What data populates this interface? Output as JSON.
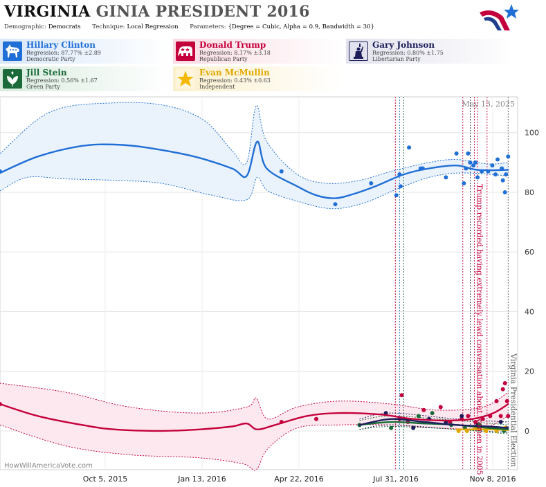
{
  "header": {
    "state": "VIRGINIA",
    "race": "GINIA PRESIDENT 2016",
    "demographic_label": "Demographic:",
    "demographic_value": "Democrats",
    "technique_label": "Technique:",
    "technique_value": "Local Regression",
    "parameters_label": "Parameters:",
    "parameters_value": "{Degree = Cubic, Alpha = 0.9, Bandwidth = 30}"
  },
  "candidates": [
    {
      "name": "Hillary Clinton",
      "regression": "Regression: 87.77% ±2.89",
      "party": "Democratic Party",
      "color": "#1f6fd6",
      "bg": "#e4eefb",
      "icon": "donkey-icon"
    },
    {
      "name": "Donald Trump",
      "regression": "Regression: 8.17% ±3.18",
      "party": "Republican Party",
      "color": "#c4003c",
      "bg": "#fbe4ea",
      "icon": "elephant-icon"
    },
    {
      "name": "Gary Johnson",
      "regression": "Regression: 0.80% ±1.75",
      "party": "Libertarian Party",
      "color": "#1d1d5a",
      "bg": "#eaeaf2",
      "icon": "liberty-icon"
    },
    {
      "name": "Jill Stein",
      "regression": "Regression: 0.56% ±1.67",
      "party": "Green Party",
      "color": "#1b6b3a",
      "bg": "#e4f1e8",
      "icon": "leaf-icon"
    },
    {
      "name": "Evan McMullin",
      "regression": "Regression: 0.43% ±0.63",
      "party": "Independent",
      "color": "#e0a800",
      "bg": "#fdf5dc",
      "icon": "star-icon"
    }
  ],
  "credit": "HowWillAmericaVote.com",
  "chart_data": {
    "type": "line",
    "x_tick_labels": [
      "Oct 5, 2015",
      "Jan 13, 2016",
      "Apr 22, 2016",
      "Jul 31, 2016",
      "Nov 8, 2016"
    ],
    "x_range": [
      "2015-07-15",
      "2016-11-17"
    ],
    "y_range": [
      -13,
      112
    ],
    "y_ticks": [
      0,
      20,
      40,
      60,
      80,
      100
    ],
    "grid": true,
    "date_label": "May 13, 2025",
    "annotations": [
      {
        "date": "2016-10-07",
        "text": "Trump recorded having extremely lewd conversation about women in 2005",
        "color": "#c4003c"
      },
      {
        "date": "2016-11-08",
        "text": "Virginia Presidential Election",
        "color": "#555555"
      }
    ],
    "event_lines": [
      {
        "date": "2016-07-24",
        "color": "#c4003c"
      },
      {
        "date": "2016-07-28",
        "color": "#1f6fd6"
      },
      {
        "date": "2016-08-01",
        "color": "#1b6b3a"
      },
      {
        "date": "2016-09-26",
        "color": "#c4003c"
      },
      {
        "date": "2016-10-03",
        "color": "#1d1d5a"
      },
      {
        "date": "2016-10-07",
        "color": "#c4003c"
      },
      {
        "date": "2016-10-10",
        "color": "#c4003c"
      },
      {
        "date": "2016-10-19",
        "color": "#c4003c"
      },
      {
        "date": "2016-11-08",
        "color": "#555555"
      }
    ],
    "series": [
      {
        "name": "Hillary Clinton",
        "color": "#1f6fd6",
        "fill": "#eaf2fb",
        "line": [
          [
            "2015-07-15",
            86.5
          ],
          [
            "2015-08-20",
            92
          ],
          [
            "2015-09-30",
            95.5
          ],
          [
            "2015-11-01",
            96
          ],
          [
            "2015-12-01",
            95
          ],
          [
            "2016-01-15",
            92
          ],
          [
            "2016-02-20",
            88
          ],
          [
            "2016-03-05",
            85.5
          ],
          [
            "2016-03-15",
            97
          ],
          [
            "2016-03-24",
            88
          ],
          [
            "2016-04-22",
            82
          ],
          [
            "2016-05-10",
            79
          ],
          [
            "2016-05-28",
            78
          ],
          [
            "2016-06-15",
            79.5
          ],
          [
            "2016-07-05",
            82
          ],
          [
            "2016-08-01",
            86
          ],
          [
            "2016-08-25",
            88
          ],
          [
            "2016-09-20",
            89
          ],
          [
            "2016-10-10",
            87.5
          ],
          [
            "2016-11-08",
            87.5
          ]
        ],
        "upper": [
          [
            "2015-07-15",
            93
          ],
          [
            "2015-09-01",
            107
          ],
          [
            "2015-11-01",
            110
          ],
          [
            "2015-12-20",
            109
          ],
          [
            "2016-01-25",
            104
          ],
          [
            "2016-02-20",
            94
          ],
          [
            "2016-03-05",
            90
          ],
          [
            "2016-03-14",
            109
          ],
          [
            "2016-03-24",
            97
          ],
          [
            "2016-04-22",
            86
          ],
          [
            "2016-05-20",
            83
          ],
          [
            "2016-06-20",
            84
          ],
          [
            "2016-07-20",
            87
          ],
          [
            "2016-08-25",
            90
          ],
          [
            "2016-09-20",
            91
          ],
          [
            "2016-10-20",
            89.5
          ],
          [
            "2016-11-08",
            90
          ]
        ],
        "lower": [
          [
            "2015-07-15",
            80.5
          ],
          [
            "2015-08-10",
            85
          ],
          [
            "2015-09-15",
            84.5
          ],
          [
            "2015-11-01",
            84
          ],
          [
            "2015-12-15",
            83
          ],
          [
            "2016-02-01",
            79
          ],
          [
            "2016-03-05",
            77.5
          ],
          [
            "2016-03-15",
            85
          ],
          [
            "2016-03-25",
            80.5
          ],
          [
            "2016-04-22",
            77
          ],
          [
            "2016-05-25",
            74.5
          ],
          [
            "2016-06-25",
            76.5
          ],
          [
            "2016-07-25",
            81
          ],
          [
            "2016-08-25",
            85
          ],
          [
            "2016-09-25",
            86.5
          ],
          [
            "2016-11-08",
            85.5
          ]
        ],
        "points": [
          [
            "2015-07-15",
            87
          ],
          [
            "2016-04-07",
            87
          ],
          [
            "2016-05-28",
            76
          ],
          [
            "2016-07-01",
            83
          ],
          [
            "2016-07-25",
            79
          ],
          [
            "2016-07-28",
            86
          ],
          [
            "2016-07-29",
            82
          ],
          [
            "2016-08-06",
            95
          ],
          [
            "2016-08-17",
            88
          ],
          [
            "2016-08-19",
            88
          ],
          [
            "2016-09-10",
            85
          ],
          [
            "2016-09-20",
            93
          ],
          [
            "2016-09-27",
            83
          ],
          [
            "2016-09-29",
            88
          ],
          [
            "2016-10-01",
            93
          ],
          [
            "2016-10-03",
            90
          ],
          [
            "2016-10-06",
            89
          ],
          [
            "2016-10-08",
            90
          ],
          [
            "2016-10-10",
            85
          ],
          [
            "2016-10-14",
            87
          ],
          [
            "2016-10-20",
            87
          ],
          [
            "2016-10-24",
            89
          ],
          [
            "2016-10-27",
            86
          ],
          [
            "2016-10-29",
            91
          ],
          [
            "2016-11-02",
            88
          ],
          [
            "2016-11-03",
            84
          ],
          [
            "2016-11-05",
            80
          ],
          [
            "2016-11-06",
            86
          ],
          [
            "2016-11-08",
            92
          ]
        ]
      },
      {
        "name": "Donald Trump",
        "color": "#c4003c",
        "fill": "#fce8ee",
        "line": [
          [
            "2015-07-15",
            9
          ],
          [
            "2015-08-20",
            5
          ],
          [
            "2015-10-01",
            2
          ],
          [
            "2015-11-01",
            0.5
          ],
          [
            "2015-12-15",
            0
          ],
          [
            "2016-01-20",
            0.5
          ],
          [
            "2016-02-20",
            1.5
          ],
          [
            "2016-03-05",
            2.5
          ],
          [
            "2016-03-15",
            0.5
          ],
          [
            "2016-04-01",
            2
          ],
          [
            "2016-05-01",
            5
          ],
          [
            "2016-06-01",
            6
          ],
          [
            "2016-07-10",
            5.5
          ],
          [
            "2016-08-10",
            4
          ],
          [
            "2016-09-10",
            3.5
          ],
          [
            "2016-10-05",
            4
          ],
          [
            "2016-10-25",
            6
          ],
          [
            "2016-11-08",
            9
          ]
        ],
        "upper": [
          [
            "2015-07-15",
            16
          ],
          [
            "2015-09-15",
            13
          ],
          [
            "2015-11-15",
            8
          ],
          [
            "2016-01-20",
            6
          ],
          [
            "2016-03-05",
            8
          ],
          [
            "2016-03-14",
            11
          ],
          [
            "2016-03-25",
            4
          ],
          [
            "2016-04-22",
            8
          ],
          [
            "2016-06-01",
            10
          ],
          [
            "2016-07-20",
            9
          ],
          [
            "2016-09-01",
            7
          ],
          [
            "2016-10-15",
            8
          ],
          [
            "2016-11-08",
            13
          ]
        ],
        "lower": [
          [
            "2015-07-15",
            2
          ],
          [
            "2015-09-15",
            -5
          ],
          [
            "2015-11-15",
            -8
          ],
          [
            "2016-01-20",
            -9
          ],
          [
            "2016-03-01",
            -11
          ],
          [
            "2016-03-14",
            -13
          ],
          [
            "2016-03-25",
            -6
          ],
          [
            "2016-04-22",
            1
          ],
          [
            "2016-06-01",
            2
          ],
          [
            "2016-07-20",
            2
          ],
          [
            "2016-09-01",
            1
          ],
          [
            "2016-10-15",
            1
          ],
          [
            "2016-11-08",
            5
          ]
        ],
        "points": [
          [
            "2015-07-15",
            9
          ],
          [
            "2016-04-07",
            3
          ],
          [
            "2016-05-10",
            4
          ],
          [
            "2016-07-28",
            4
          ],
          [
            "2016-07-30",
            12
          ],
          [
            "2016-08-05",
            3
          ],
          [
            "2016-08-20",
            7
          ],
          [
            "2016-09-05",
            8
          ],
          [
            "2016-09-14",
            3
          ],
          [
            "2016-09-25",
            4
          ],
          [
            "2016-10-01",
            5
          ],
          [
            "2016-10-08",
            3
          ],
          [
            "2016-10-15",
            4
          ],
          [
            "2016-10-22",
            5
          ],
          [
            "2016-10-28",
            10
          ],
          [
            "2016-11-01",
            5
          ],
          [
            "2016-11-03",
            14
          ],
          [
            "2016-11-05",
            16
          ],
          [
            "2016-11-07",
            10
          ],
          [
            "2016-11-08",
            5
          ]
        ]
      },
      {
        "name": "Gary Johnson",
        "color": "#1d1d5a",
        "fill": "none",
        "line": [
          [
            "2016-06-20",
            2
          ],
          [
            "2016-07-20",
            4
          ],
          [
            "2016-08-20",
            3
          ],
          [
            "2016-09-20",
            2
          ],
          [
            "2016-10-20",
            1.5
          ],
          [
            "2016-11-08",
            1
          ]
        ],
        "upper": [
          [
            "2016-06-20",
            4
          ],
          [
            "2016-07-20",
            6
          ],
          [
            "2016-09-20",
            4
          ],
          [
            "2016-11-08",
            3
          ]
        ],
        "lower": [
          [
            "2016-06-20",
            0.5
          ],
          [
            "2016-07-20",
            2
          ],
          [
            "2016-09-20",
            0.5
          ],
          [
            "2016-11-08",
            -0.5
          ]
        ],
        "points": [
          [
            "2016-06-20",
            2
          ],
          [
            "2016-07-15",
            6
          ],
          [
            "2016-08-10",
            1
          ],
          [
            "2016-08-25",
            4
          ],
          [
            "2016-09-10",
            3
          ],
          [
            "2016-09-25",
            5
          ],
          [
            "2016-10-10",
            2
          ],
          [
            "2016-10-20",
            1
          ],
          [
            "2016-11-01",
            3
          ],
          [
            "2016-11-06",
            1
          ]
        ]
      },
      {
        "name": "Jill Stein",
        "color": "#1b6b3a",
        "fill": "none",
        "line": [
          [
            "2016-06-20",
            2
          ],
          [
            "2016-07-20",
            3
          ],
          [
            "2016-08-20",
            2.5
          ],
          [
            "2016-09-20",
            2
          ],
          [
            "2016-10-20",
            1
          ],
          [
            "2016-11-08",
            0.5
          ]
        ],
        "upper": [
          [
            "2016-06-20",
            3.5
          ],
          [
            "2016-07-20",
            5
          ],
          [
            "2016-09-20",
            3.5
          ],
          [
            "2016-11-08",
            2
          ]
        ],
        "lower": [
          [
            "2016-06-20",
            0.5
          ],
          [
            "2016-07-20",
            1.5
          ],
          [
            "2016-09-20",
            0.5
          ],
          [
            "2016-11-08",
            -1
          ]
        ],
        "points": [
          [
            "2016-06-20",
            2
          ],
          [
            "2016-07-20",
            1
          ],
          [
            "2016-08-15",
            5
          ],
          [
            "2016-08-28",
            6
          ],
          [
            "2016-09-15",
            2
          ],
          [
            "2016-09-28",
            1
          ],
          [
            "2016-10-12",
            2
          ],
          [
            "2016-10-25",
            1
          ],
          [
            "2016-11-04",
            0
          ]
        ]
      },
      {
        "name": "Evan McMullin",
        "color": "#e0a800",
        "fill": "none",
        "line": [
          [
            "2016-09-20",
            0.5
          ],
          [
            "2016-10-10",
            0.5
          ],
          [
            "2016-10-25",
            0.5
          ],
          [
            "2016-11-08",
            0.3
          ]
        ],
        "upper": [],
        "lower": [],
        "points": [
          [
            "2016-09-22",
            0
          ],
          [
            "2016-09-30",
            0
          ],
          [
            "2016-10-08",
            1
          ],
          [
            "2016-10-18",
            0
          ],
          [
            "2016-10-28",
            0
          ],
          [
            "2016-11-05",
            1
          ]
        ]
      }
    ]
  }
}
